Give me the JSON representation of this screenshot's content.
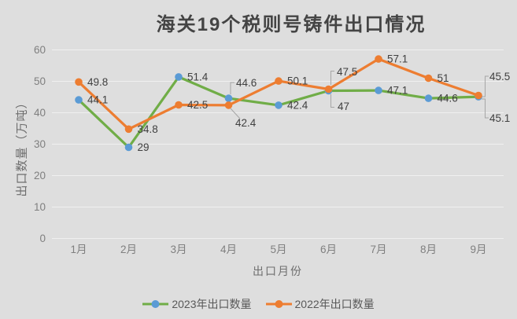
{
  "chart_data": {
    "type": "line",
    "title": "海关19个税则号铸件出口情况",
    "xlabel": "出口月份",
    "ylabel": "出口数量（万吨）",
    "categories": [
      "1月",
      "2月",
      "3月",
      "4月",
      "5月",
      "6月",
      "7月",
      "8月",
      "9月"
    ],
    "y_ticks": [
      0,
      10,
      20,
      30,
      40,
      50,
      60
    ],
    "ylim": [
      0,
      60
    ],
    "grid": true,
    "legend_position": "bottom",
    "series": [
      {
        "name": "2023年出口数量",
        "line_color": "#70AD47",
        "marker_color": "#5B9BD5",
        "values": [
          44.1,
          29,
          51.4,
          44.6,
          42.4,
          47,
          47.1,
          44.6,
          45.1
        ]
      },
      {
        "name": "2022年出口数量",
        "line_color": "#ED7D31",
        "marker_color": "#ED7D31",
        "values": [
          49.8,
          34.8,
          42.5,
          42.4,
          50.1,
          47.5,
          57.1,
          51,
          45.5
        ]
      }
    ]
  }
}
